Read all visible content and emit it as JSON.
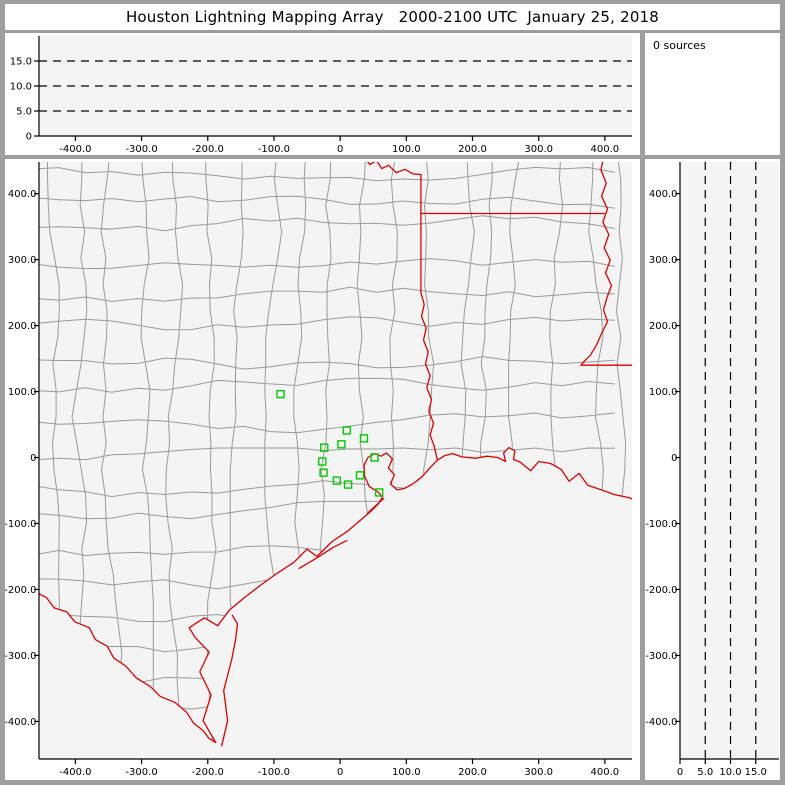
{
  "window": {
    "title": "Houston Lightning Mapping Array   2000-2100 UTC  January 25, 2018"
  },
  "sources_panel": {
    "label": "0 sources",
    "count": 0
  },
  "colors": {
    "background": "#9e9e9e",
    "panel": "#ffffff",
    "plot_bg": "#f4f4f4",
    "axis": "#000000",
    "grid_dash": "#000000",
    "county_line": "#999999",
    "state_border": "#dd0000",
    "station": "#00cc00",
    "text": "#000000"
  },
  "chart_data": [
    {
      "id": "alt_time",
      "type": "scatter",
      "role": "altitude-vs-east-west-top-panel",
      "points": [],
      "x_range": [
        -455,
        441
      ],
      "y_range": [
        0,
        20
      ],
      "x_ticks": [
        -400,
        -300,
        -200,
        -100,
        0,
        100,
        200,
        300,
        400
      ],
      "x_tick_labels": [
        "-400.0",
        "-300.0",
        "-200.0",
        "-100.0",
        "0",
        "100.0",
        "200.0",
        "300.0",
        "400.0"
      ],
      "y_gridlines": [
        5,
        10,
        15
      ],
      "y_tick_values": [
        0,
        5,
        10,
        15
      ],
      "y_tick_labels": [
        "0",
        "5.0",
        "10.0",
        "15.0"
      ],
      "grid_style": "dashed"
    },
    {
      "id": "sources",
      "type": "table",
      "role": "source-count-readout",
      "rows": [
        [
          "0 sources"
        ]
      ]
    },
    {
      "id": "map",
      "type": "scatter",
      "role": "plan-view-map",
      "points": [],
      "x_range": [
        -455,
        441
      ],
      "y_range": [
        -457,
        448
      ],
      "x_ticks": [
        -400,
        -300,
        -200,
        -100,
        0,
        100,
        200,
        300,
        400
      ],
      "x_tick_labels": [
        "-400.0",
        "-300.0",
        "-200.0",
        "-100.0",
        "0",
        "100.0",
        "200.0",
        "300.0",
        "400.0"
      ],
      "y_ticks": [
        400,
        300,
        200,
        100,
        0,
        -100,
        -200,
        -300,
        -400
      ],
      "y_tick_labels": [
        "400.0",
        "300.0",
        "200.0",
        "100.0",
        "0",
        "-100.0",
        "-200.0",
        "-300.0",
        "-400.0"
      ],
      "stations": [
        [
          -90,
          96
        ],
        [
          10,
          41
        ],
        [
          36,
          29
        ],
        [
          2,
          20
        ],
        [
          -24,
          15
        ],
        [
          52,
          0
        ],
        [
          -27,
          -6
        ],
        [
          -25,
          -23
        ],
        [
          30,
          -27
        ],
        [
          -5,
          -35
        ],
        [
          12,
          -41
        ],
        [
          59,
          -53
        ]
      ],
      "county_grid": {
        "cell_km": 48,
        "step_km": 40,
        "jitter_km": 16,
        "seed": 20180125
      },
      "map_features": {
        "rio_grande": [
          [
            -462,
            -203
          ],
          [
            -444,
            -212
          ],
          [
            -432,
            -228
          ],
          [
            -413,
            -234
          ],
          [
            -401,
            -249
          ],
          [
            -379,
            -258
          ],
          [
            -370,
            -276
          ],
          [
            -352,
            -286
          ],
          [
            -342,
            -304
          ],
          [
            -324,
            -316
          ],
          [
            -308,
            -334
          ],
          [
            -287,
            -347
          ],
          [
            -272,
            -362
          ],
          [
            -250,
            -371
          ],
          [
            -232,
            -386
          ],
          [
            -222,
            -402
          ],
          [
            -207,
            -414
          ],
          [
            -198,
            -426
          ],
          [
            -188,
            -432
          ]
        ],
        "coast": [
          [
            -188,
            -432
          ],
          [
            -207,
            -399
          ],
          [
            -195,
            -360
          ],
          [
            -212,
            -325
          ],
          [
            -198,
            -295
          ],
          [
            -219,
            -273
          ],
          [
            -228,
            -258
          ],
          [
            -205,
            -243
          ],
          [
            -185,
            -255
          ],
          [
            -167,
            -231
          ],
          [
            -144,
            -212
          ],
          [
            -121,
            -194
          ],
          [
            -96,
            -176
          ],
          [
            -70,
            -159
          ],
          [
            -50,
            -139
          ],
          [
            -35,
            -150
          ],
          [
            -13,
            -128
          ],
          [
            12,
            -111
          ],
          [
            32,
            -94
          ],
          [
            48,
            -80
          ],
          [
            58,
            -70
          ],
          [
            64,
            -60
          ],
          [
            57,
            -52
          ],
          [
            44,
            -44
          ],
          [
            37,
            -28
          ],
          [
            36,
            -12
          ],
          [
            42,
            0
          ],
          [
            52,
            6
          ],
          [
            62,
            2
          ],
          [
            70,
            7
          ],
          [
            79,
            -2
          ],
          [
            73,
            -16
          ],
          [
            82,
            -26
          ],
          [
            76,
            -40
          ],
          [
            86,
            -49
          ],
          [
            97,
            -47
          ],
          [
            110,
            -40
          ],
          [
            124,
            -29
          ],
          [
            137,
            -14
          ],
          [
            147,
            -4
          ],
          [
            158,
            3
          ],
          [
            170,
            6
          ],
          [
            184,
            1
          ],
          [
            205,
            -1
          ],
          [
            222,
            2
          ],
          [
            238,
            0
          ],
          [
            250,
            -6
          ],
          [
            247,
            7
          ],
          [
            255,
            15
          ],
          [
            264,
            10
          ],
          [
            262,
            -3
          ],
          [
            272,
            -7
          ],
          [
            288,
            -20
          ],
          [
            300,
            -6
          ],
          [
            318,
            -9
          ],
          [
            334,
            -18
          ],
          [
            346,
            -36
          ],
          [
            361,
            -24
          ],
          [
            374,
            -42
          ],
          [
            392,
            -48
          ],
          [
            414,
            -56
          ],
          [
            437,
            -61
          ],
          [
            466,
            -73
          ]
        ],
        "padre_island": [
          [
            -179,
            -437
          ],
          [
            -170,
            -399
          ],
          [
            -176,
            -353
          ],
          [
            -164,
            -307
          ],
          [
            -158,
            -276
          ],
          [
            -155,
            -252
          ],
          [
            -163,
            -239
          ]
        ],
        "matagorda_island": [
          [
            -62,
            -168
          ],
          [
            -35,
            -152
          ],
          [
            -10,
            -136
          ],
          [
            10,
            -126
          ]
        ],
        "galveston_island": [
          [
            42,
            -84
          ],
          [
            55,
            -72
          ],
          [
            66,
            -62
          ]
        ],
        "red_river": [
          [
            33,
            459
          ],
          [
            45,
            444
          ],
          [
            55,
            450
          ],
          [
            63,
            438
          ],
          [
            73,
            443
          ],
          [
            85,
            432
          ],
          [
            98,
            437
          ],
          [
            110,
            430
          ],
          [
            122,
            429
          ]
        ],
        "tx_ar_border": [
          [
            122,
            429
          ],
          [
            122,
            250
          ]
        ],
        "ar_la_border": [
          [
            122,
            370
          ],
          [
            399,
            370
          ]
        ],
        "sabine_river": [
          [
            122,
            250
          ],
          [
            127,
            232
          ],
          [
            123,
            214
          ],
          [
            130,
            196
          ],
          [
            126,
            178
          ],
          [
            133,
            160
          ],
          [
            129,
            142
          ],
          [
            136,
            124
          ],
          [
            131,
            106
          ],
          [
            138,
            88
          ],
          [
            134,
            70
          ],
          [
            141,
            52
          ],
          [
            136,
            34
          ],
          [
            142,
            18
          ],
          [
            147,
            -4
          ]
        ],
        "mississippi_river": [
          [
            399,
            459
          ],
          [
            394,
            436
          ],
          [
            402,
            416
          ],
          [
            395,
            396
          ],
          [
            404,
            377
          ],
          [
            397,
            357
          ],
          [
            406,
            338
          ],
          [
            399,
            318
          ],
          [
            408,
            299
          ],
          [
            401,
            280
          ],
          [
            410,
            261
          ],
          [
            403,
            242
          ],
          [
            398,
            224
          ],
          [
            404,
            206
          ],
          [
            395,
            188
          ],
          [
            387,
            170
          ],
          [
            378,
            155
          ],
          [
            369,
            146
          ],
          [
            364,
            140
          ]
        ],
        "la_ms_border": [
          [
            364,
            140
          ],
          [
            466,
            140
          ]
        ]
      }
    },
    {
      "id": "alt_y",
      "type": "scatter",
      "role": "altitude-vs-north-south-right-panel",
      "points": [],
      "x_range": [
        0,
        19.4
      ],
      "y_range": [
        -457,
        448
      ],
      "x_gridlines": [
        5,
        10,
        15
      ],
      "x_tick_values": [
        0,
        5,
        10,
        15
      ],
      "x_tick_labels": [
        "0",
        "5.0",
        "10.0",
        "15.0"
      ],
      "y_ticks": [
        400,
        300,
        200,
        100,
        0,
        -100,
        -200,
        -300,
        -400
      ],
      "y_tick_labels": [
        "400.0",
        "300.0",
        "200.0",
        "100.0",
        "0",
        "-100.0",
        "-200.0",
        "-300.0",
        "-400.0"
      ],
      "grid_style": "dashed"
    }
  ]
}
